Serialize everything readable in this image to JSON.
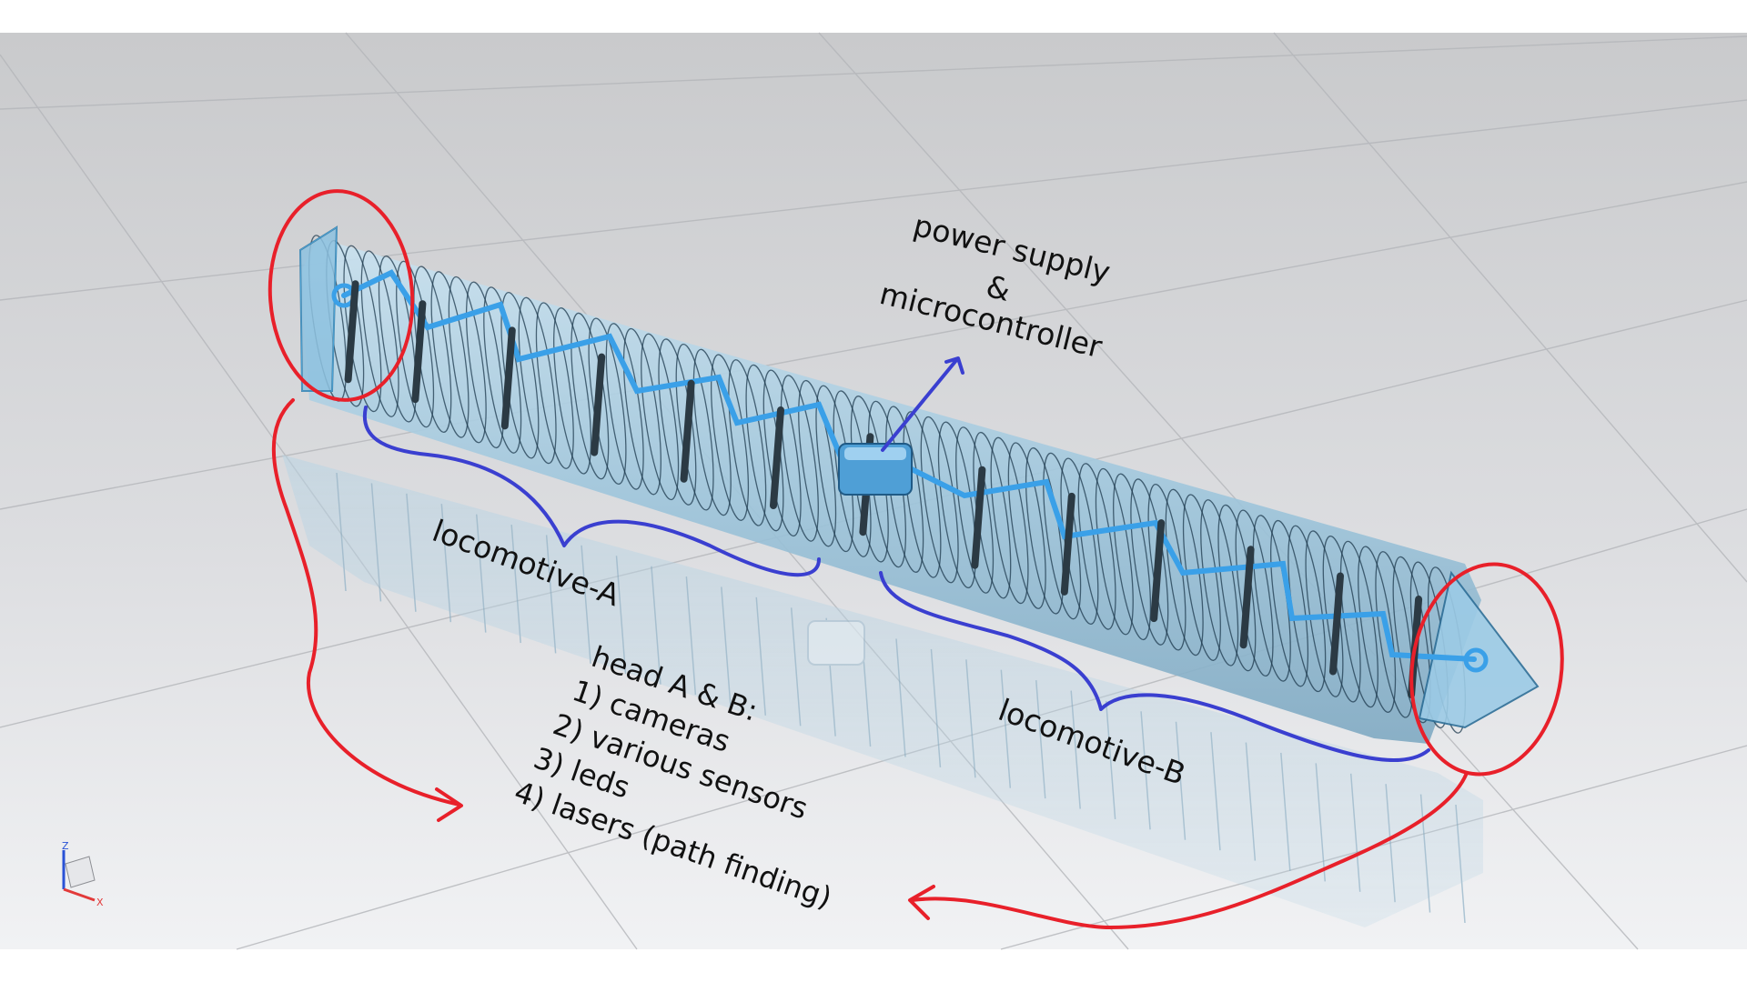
{
  "annotations": {
    "power_line1": "power supply",
    "power_line2": "&",
    "power_line3": "microcontroller",
    "loco_a": "locomotive-A",
    "loco_b": "locomotive-B",
    "head_title": "head A & B:",
    "head_items": [
      "1) cameras",
      "2) various sensors",
      "3) leds",
      "4) lasers (path finding)"
    ]
  },
  "axis_triad": {
    "z": "Z",
    "x": "X"
  },
  "colors": {
    "circle_marker": "#e8202a",
    "brace_marker": "#3a3fd0",
    "body_fill": "#a9cbe0",
    "body_line": "#1d3a4d",
    "skeleton": "#3aa0e8"
  }
}
